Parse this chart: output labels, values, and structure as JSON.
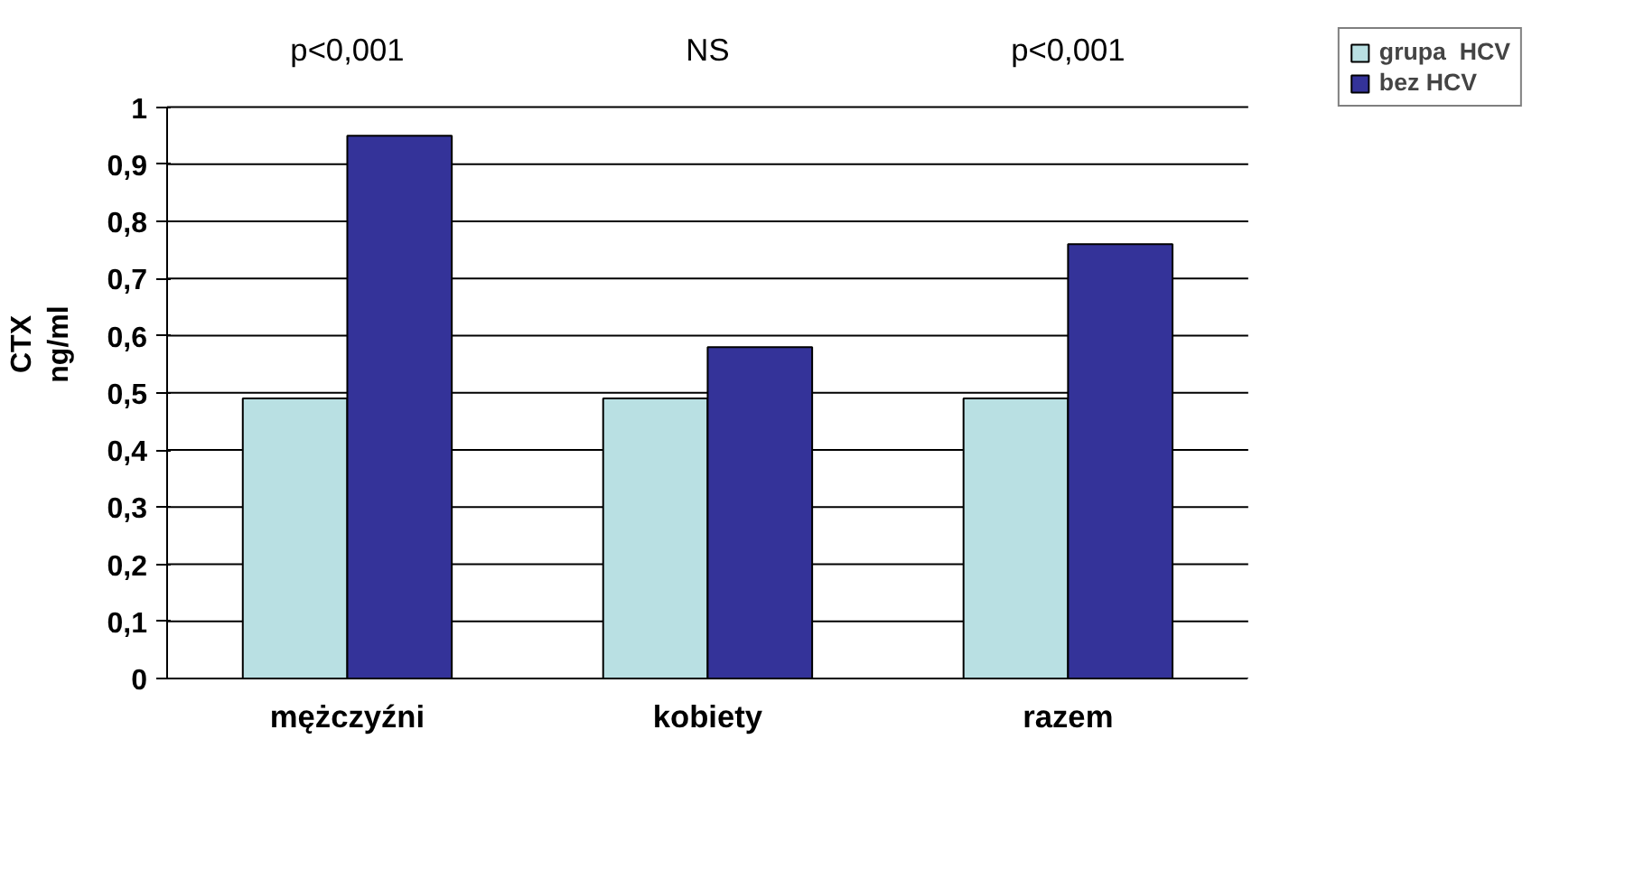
{
  "chart_data": {
    "type": "bar",
    "ylabel": "CTX\nng/ml",
    "categories": [
      "mężczyźni",
      "kobiety",
      "razem"
    ],
    "series": [
      {
        "name": "grupa  HCV",
        "color": "#b9e0e3",
        "values": [
          0.49,
          0.49,
          0.49
        ]
      },
      {
        "name": "bez HCV",
        "color": "#343399",
        "values": [
          0.95,
          0.58,
          0.76
        ]
      }
    ],
    "ylim": [
      0,
      1
    ],
    "yticks": [
      0,
      {
        "value": 0.1,
        "label": "0,1"
      },
      {
        "value": 0.2,
        "label": "0,2"
      },
      {
        "value": 0.3,
        "label": "0,3"
      },
      {
        "value": 0.4,
        "label": "0,4"
      },
      {
        "value": 0.5,
        "label": "0,5"
      },
      {
        "value": 0.6,
        "label": "0,6"
      },
      {
        "value": 0.7,
        "label": "0,7"
      },
      {
        "value": 0.8,
        "label": "0,8"
      },
      {
        "value": 0.9,
        "label": "0,9"
      },
      1
    ],
    "annotations": [
      "p<0,001",
      "NS",
      "p<0,001"
    ],
    "grid": "y",
    "legend": "top right"
  }
}
